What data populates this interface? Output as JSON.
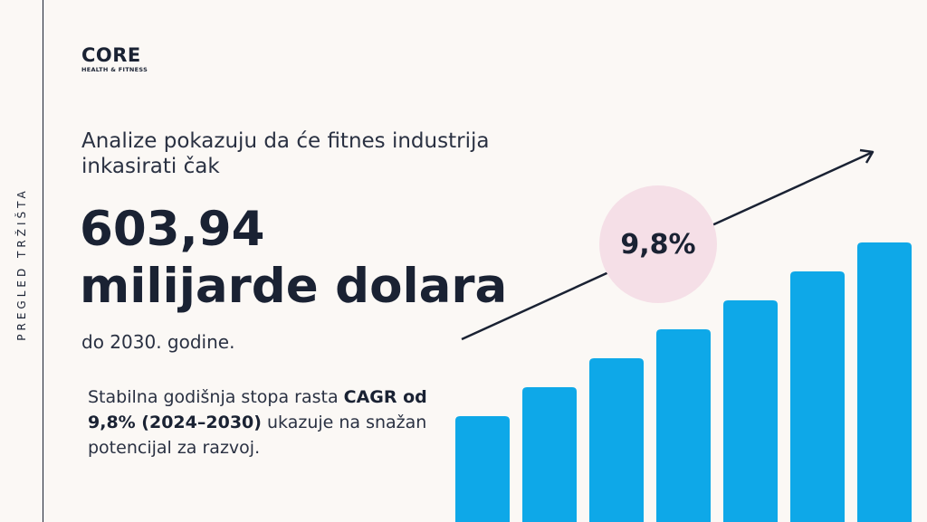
{
  "sidebar": {
    "label": "PREGLED TRŽIŠTA"
  },
  "logo": {
    "main": "CORE",
    "sub": "HEALTH & FITNESS"
  },
  "intro": "Analize pokazuju da će fitnes industrija inkasirati čak",
  "headline": {
    "line1": "603,94",
    "line2": "milijarde dolara"
  },
  "until": "do 2030. godine.",
  "body": {
    "pre": "Stabilna godišnja stopa rasta ",
    "bold": "CAGR od 9,8% (2024–2030)",
    "post": " ukazuje na snažan potencijal za razvoj."
  },
  "badge": "9,8%",
  "colors": {
    "bar": "#0ea8e8",
    "badge_bg": "#f5dfe7",
    "text": "#1a2233"
  },
  "chart_data": {
    "type": "bar",
    "values": [
      117,
      149,
      181,
      213,
      245,
      277,
      309
    ],
    "ylim": [
      0,
      320
    ],
    "trend": "rising arrow"
  }
}
